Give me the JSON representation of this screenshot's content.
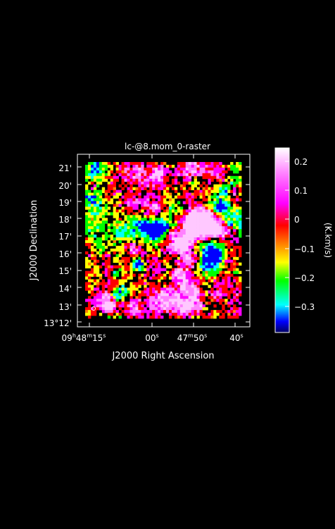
{
  "title": "lc-@8.mom_0-raster",
  "x_axis_label": "J2000 Right Ascension",
  "y_axis_label": "J2000 Declination",
  "colorbar_label": "(K.km/s)",
  "y_ticks": [
    "13°12'",
    "13'",
    "14'",
    "15'",
    "16'",
    "17'",
    "18'",
    "19'",
    "20'",
    "21'"
  ],
  "x_ticks": [
    "09h48m15s",
    "00s",
    "47m50s",
    "40s"
  ],
  "colorbar_ticks": [
    "0.2",
    "0.1",
    "0",
    "−0.1",
    "−0.2",
    "−0.3"
  ],
  "colorbar_range": [
    -0.39,
    0.25
  ],
  "colormap": [
    "#000080",
    "#0000ff",
    "#00ffff",
    "#00ff00",
    "#ffff00",
    "#ff8000",
    "#ff0000",
    "#ff00ff",
    "#ff80ff",
    "#ffffff"
  ],
  "raster_seed": 42,
  "map_note": "noise-like moment-0 raster"
}
